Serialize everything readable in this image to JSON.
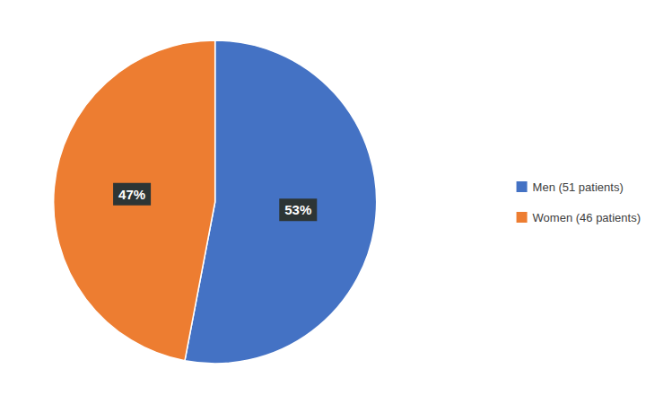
{
  "chart_data": {
    "type": "pie",
    "categories": [
      "Men (51 patients)",
      "Women (46 patients)"
    ],
    "values": [
      53,
      47
    ],
    "value_labels": [
      "53%",
      "47%"
    ],
    "colors": [
      "#4472C4",
      "#ED7D31"
    ],
    "data_labels": true,
    "legend": "right"
  }
}
